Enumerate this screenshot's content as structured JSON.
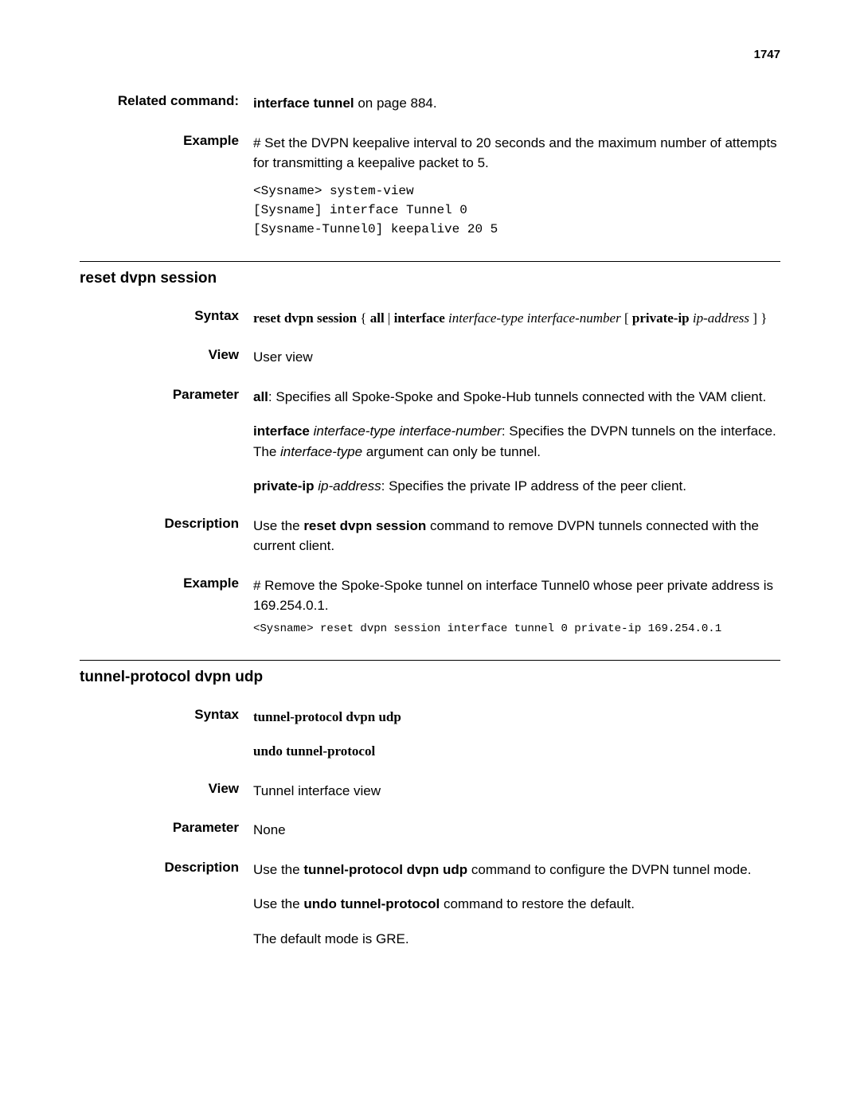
{
  "page_number": "1747",
  "related_command": {
    "label": "Related command:",
    "link_text": "interface tunnel",
    "suffix": " on page 884."
  },
  "example1": {
    "label": "Example",
    "text": "# Set the DVPN keepalive interval to 20 seconds and the maximum number of attempts for transmitting a keepalive packet to 5.",
    "code": "<Sysname> system-view\n[Sysname] interface Tunnel 0\n[Sysname-Tunnel0] keepalive 20 5"
  },
  "section1": {
    "title": "reset dvpn session",
    "syntax": {
      "label": "Syntax",
      "cmd": "reset dvpn session",
      "brace_open": " { ",
      "all": "all",
      "pipe": " | ",
      "interface_kw": "interface",
      "iftype": " interface-type interface-number",
      "priv": " [ ",
      "private_kw": "private-ip",
      "ipaddr": "ip-address",
      "brace_close": " ] }"
    },
    "view": {
      "label": "View",
      "text": "User view"
    },
    "parameter": {
      "label": "Parameter",
      "p1_bold": "all",
      "p1_text": ": Specifies all Spoke-Spoke and Spoke-Hub tunnels connected with the VAM client.",
      "p2_bold": "interface",
      "p2_italic": " interface-type interface-number",
      "p2_text": ": Specifies the DVPN tunnels on the interface. The ",
      "p2_italic2": "interface-type",
      "p2_text2": " argument can only be tunnel.",
      "p3_bold": "private-ip",
      "p3_italic": " ip-address",
      "p3_text": ": Specifies the private IP address of the peer client."
    },
    "description": {
      "label": "Description",
      "t1": "Use the ",
      "b1": "reset dvpn session",
      "t2": " command to remove DVPN tunnels connected with the current client."
    },
    "example": {
      "label": "Example",
      "text": "# Remove the Spoke-Spoke tunnel on interface Tunnel0 whose peer private address is 169.254.0.1.",
      "code": "<Sysname> reset dvpn session interface tunnel 0 private-ip 169.254.0.1"
    }
  },
  "section2": {
    "title": "tunnel-protocol dvpn udp",
    "syntax": {
      "label": "Syntax",
      "line1": "tunnel-protocol dvpn udp",
      "line2": "undo tunnel-protocol"
    },
    "view": {
      "label": "View",
      "text": "Tunnel interface view"
    },
    "parameter": {
      "label": "Parameter",
      "text": "None"
    },
    "description": {
      "label": "Description",
      "t1": "Use the ",
      "b1": "tunnel-protocol dvpn udp",
      "t2": " command to configure the DVPN tunnel mode.",
      "t3": "Use the ",
      "b2": "undo tunnel-protocol",
      "t4": " command to restore the default.",
      "t5": "The default mode is GRE."
    }
  }
}
